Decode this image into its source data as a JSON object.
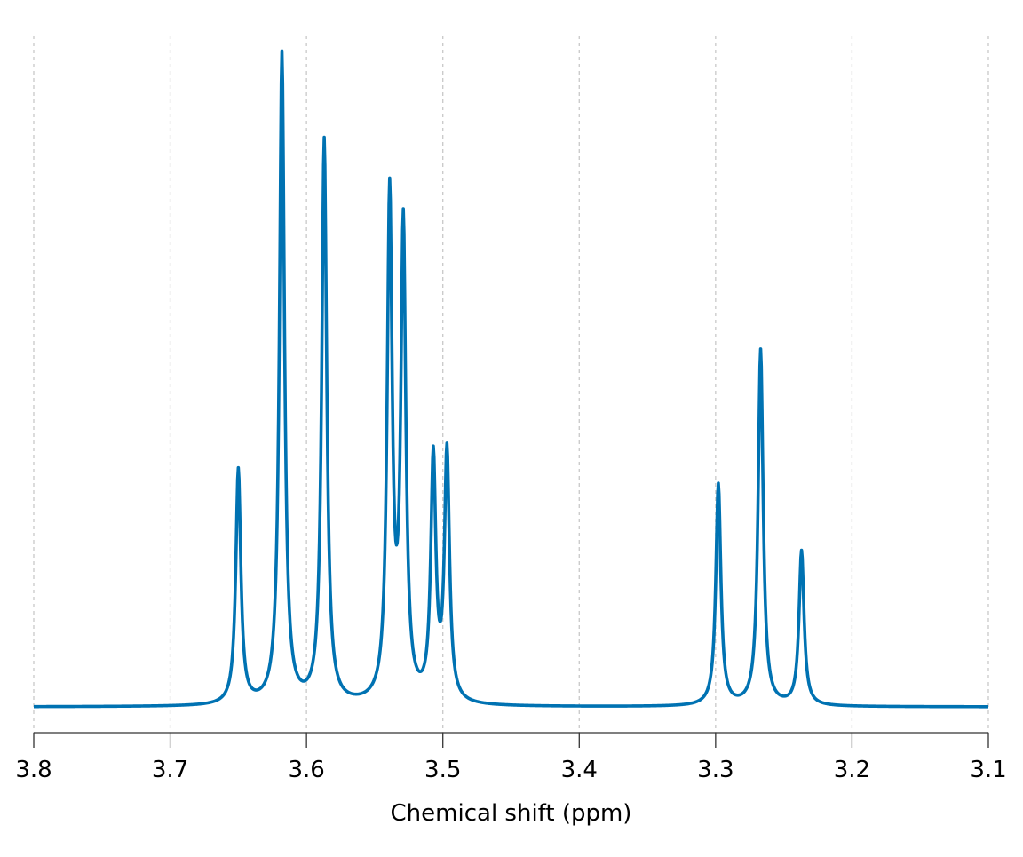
{
  "chart_data": {
    "type": "line",
    "title": "",
    "xlabel": "Chemical shift (ppm)",
    "ylabel": "",
    "xlim": [
      3.8,
      3.1
    ],
    "x_reversed": true,
    "ylim": [
      0,
      1.0
    ],
    "grid": "vertical dashed",
    "y_axis_visible": false,
    "line_color": "#0072b2",
    "x_ticks": [
      3.8,
      3.7,
      3.6,
      3.5,
      3.4,
      3.3,
      3.2,
      3.1
    ],
    "x_tick_labels": [
      "3.8",
      "3.7",
      "3.6",
      "3.5",
      "3.4",
      "3.3",
      "3.2",
      "3.1"
    ],
    "peaks": [
      {
        "position": 3.65,
        "height": 0.35
      },
      {
        "position": 3.618,
        "height": 0.97
      },
      {
        "position": 3.587,
        "height": 0.84
      },
      {
        "position": 3.539,
        "height": 0.75
      },
      {
        "position": 3.529,
        "height": 0.7
      },
      {
        "position": 3.507,
        "height": 0.36
      },
      {
        "position": 3.497,
        "height": 0.37
      },
      {
        "position": 3.298,
        "height": 0.33
      },
      {
        "position": 3.267,
        "height": 0.53
      },
      {
        "position": 3.237,
        "height": 0.23
      }
    ],
    "peak_halfwidth_ppm": 0.0022
  }
}
